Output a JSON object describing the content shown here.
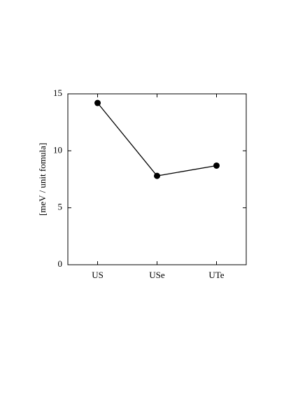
{
  "chart_data": {
    "type": "line",
    "y_label": "[meV / unit fomula]",
    "categories": [
      "US",
      "USe",
      "UTe"
    ],
    "values": [
      14.2,
      7.8,
      8.7
    ],
    "color": "#000000",
    "ylim": [
      0,
      15
    ],
    "yticks": [
      0,
      5,
      10,
      15
    ],
    "markers": true
  }
}
